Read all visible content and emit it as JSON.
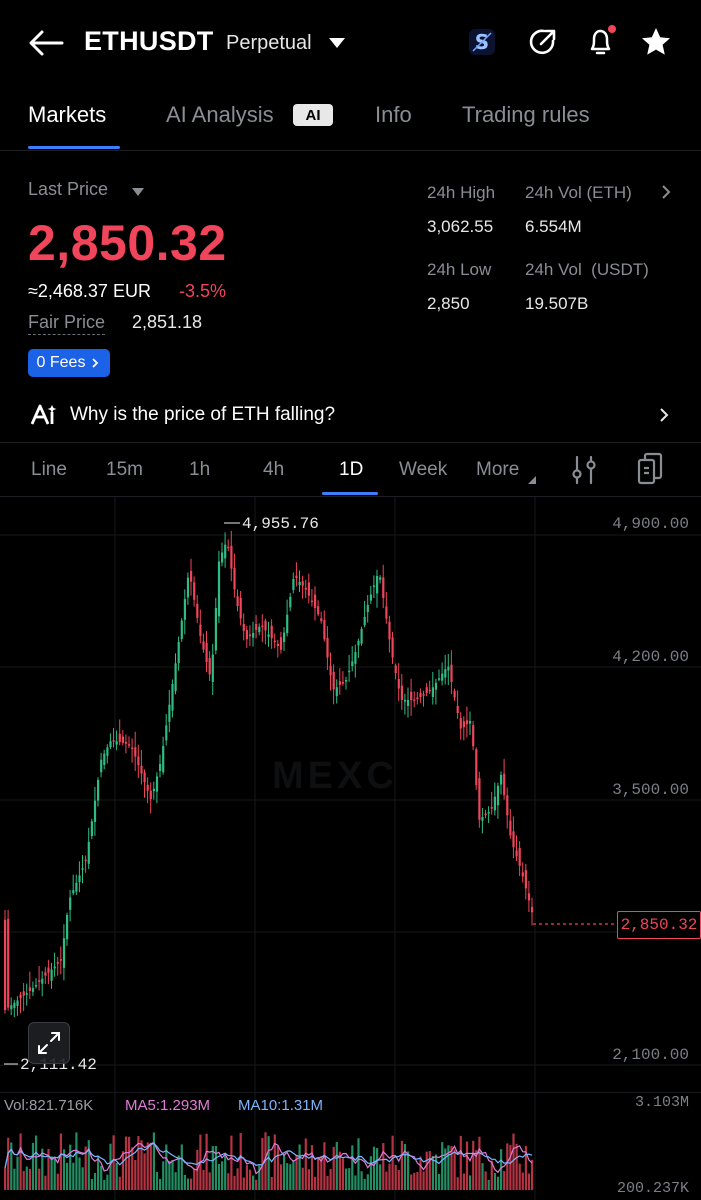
{
  "header": {
    "title": "ETHUSDT",
    "subtitle": "Perpetual"
  },
  "tabs": [
    {
      "label": "Markets"
    },
    {
      "label": "AI Analysis"
    },
    {
      "label": "Info"
    },
    {
      "label": "Trading rules"
    }
  ],
  "ai_badge": "AI",
  "price": {
    "last_price_label": "Last Price",
    "last_price": "2,850.32",
    "eur_approx": "≈2,468.37 EUR",
    "change": "-3.5%",
    "fair_price_label": "Fair Price",
    "fair_price": "2,851.18",
    "fees_button": "0 Fees"
  },
  "stats": {
    "high_label": "24h High",
    "high": "3,062.55",
    "vol_eth_label": "24h Vol (ETH)",
    "vol_eth": "6.554M",
    "low_label": "24h Low",
    "low": "2,850",
    "vol_usdt_label": "24h Vol  (USDT)",
    "vol_usdt": "19.507B"
  },
  "ai_prompt": "Why is the price of ETH falling?",
  "intervals": [
    "Line",
    "15m",
    "1h",
    "4h",
    "1D",
    "Week",
    "More"
  ],
  "active_interval": "1D",
  "chart": {
    "y_labels": [
      "4,900.00",
      "4,200.00",
      "3,500.00",
      "2,100.00"
    ],
    "high_marker": "4,955.76",
    "low_marker": "2,111.42",
    "current_price_tag": "2,850.32",
    "watermark": "MEXC"
  },
  "volume": {
    "vol_label": "Vol:821.716K",
    "ma5_label": "MA5:1.293M",
    "ma10_label": "MA10:1.31M",
    "top_label": "3.103M",
    "bottom_label": "200.237K"
  },
  "colors": {
    "up": "#2ebd85",
    "down": "#f0455a",
    "accent": "#3f7dff"
  }
}
